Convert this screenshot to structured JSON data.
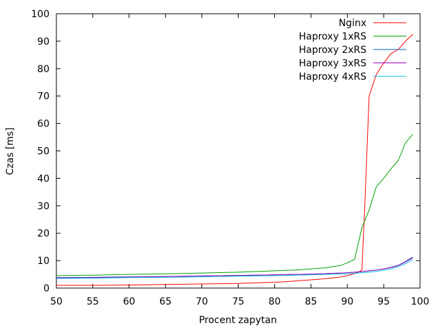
{
  "chart_data": {
    "type": "line",
    "xlabel": "Procent zapytan",
    "ylabel": "Czas [ms]",
    "xlim": [
      50,
      100
    ],
    "ylim": [
      0,
      100
    ],
    "xticks": [
      "50",
      "55",
      "60",
      "65",
      "70",
      "75",
      "80",
      "85",
      "90",
      "95",
      "100"
    ],
    "yticks": [
      "0",
      "10",
      "20",
      "30",
      "40",
      "50",
      "60",
      "70",
      "80",
      "90",
      "100"
    ],
    "grid": false,
    "legend_position": "top-right",
    "series": [
      {
        "name": "Nginx",
        "color": "#ff0000",
        "x": [
          50,
          55,
          60,
          65,
          70,
          75,
          80,
          82,
          84,
          86,
          88,
          89,
          90,
          91,
          91.5,
          92,
          92.4,
          93,
          94,
          95,
          96,
          97,
          98,
          99
        ],
        "y": [
          1,
          1,
          1.1,
          1.3,
          1.5,
          1.7,
          2.1,
          2.4,
          2.8,
          3.2,
          3.7,
          4,
          4.5,
          5.3,
          5.8,
          6.5,
          30,
          70,
          78,
          82,
          85.5,
          87,
          90,
          92.5
        ]
      },
      {
        "name": "Haproxy  1xRS",
        "color": "#00a000",
        "x": [
          50,
          55,
          60,
          65,
          70,
          75,
          80,
          83,
          85,
          87,
          89,
          90,
          91,
          92,
          93,
          94,
          95,
          96,
          97,
          98,
          99
        ],
        "y": [
          4.5,
          4.7,
          5,
          5.2,
          5.5,
          5.8,
          6.3,
          6.6,
          7,
          7.4,
          8.2,
          9.2,
          10.5,
          22,
          28.5,
          37,
          40,
          43.5,
          46.5,
          53,
          56
        ]
      },
      {
        "name": "Haproxy  2xRS",
        "color": "#0060b0",
        "x": [
          50,
          55,
          60,
          65,
          70,
          75,
          80,
          85,
          90,
          92,
          93,
          94,
          95,
          96,
          97,
          98,
          99
        ],
        "y": [
          3.8,
          3.9,
          4.1,
          4.2,
          4.4,
          4.6,
          4.8,
          5.1,
          5.6,
          6,
          6.3,
          6.6,
          7,
          7.6,
          8.3,
          9.7,
          11.3
        ]
      },
      {
        "name": "Haproxy  3xRS",
        "color": "#a000c0",
        "x": [
          50,
          55,
          60,
          65,
          70,
          75,
          80,
          85,
          90,
          92,
          93,
          94,
          95,
          96,
          97,
          98,
          99
        ],
        "y": [
          3.7,
          3.8,
          4,
          4.2,
          4.4,
          4.6,
          4.8,
          5.1,
          5.6,
          6,
          6.3,
          6.6,
          7,
          7.5,
          8.2,
          9.5,
          11
        ]
      },
      {
        "name": "Haproxy  4xRS",
        "color": "#00c0e0",
        "x": [
          50,
          55,
          60,
          65,
          70,
          75,
          80,
          85,
          90,
          92,
          93,
          94,
          95,
          96,
          97,
          98,
          99
        ],
        "y": [
          3.5,
          3.6,
          3.8,
          3.9,
          4.1,
          4.3,
          4.5,
          4.8,
          5.2,
          5.6,
          5.8,
          6.1,
          6.5,
          7,
          7.8,
          8.9,
          10.4
        ]
      }
    ]
  }
}
